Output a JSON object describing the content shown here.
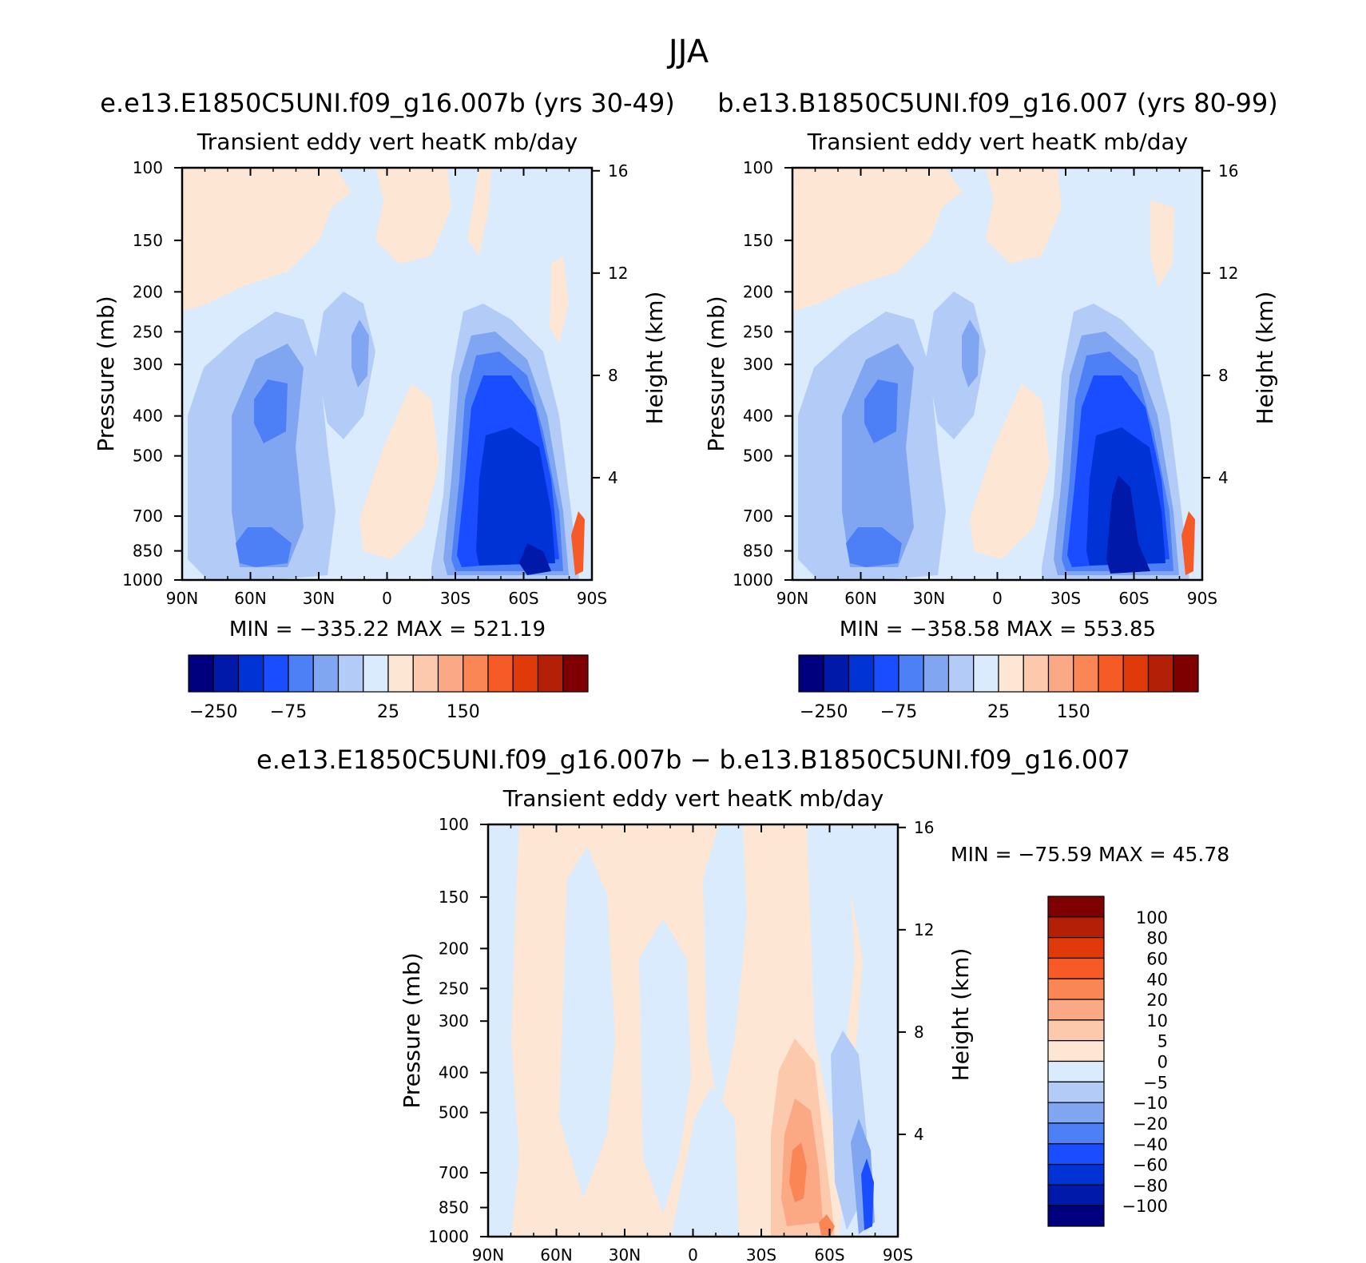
{
  "figure_title": "JJA",
  "panel_left": {
    "case_title": "e.e13.E1850C5UNI.f09_g16.007b (yrs 30-49)",
    "var_title": "Transient eddy vert heatK mb/day",
    "stats": "MIN = −335.22   MAX = 521.19"
  },
  "panel_right": {
    "case_title": "b.e13.B1850C5UNI.f09_g16.007 (yrs 80-99)",
    "var_title": "Transient eddy vert heatK mb/day",
    "stats": "MIN = −358.58   MAX = 553.85"
  },
  "panel_diff": {
    "case_title": "e.e13.E1850C5UNI.f09_g16.007b − b.e13.B1850C5UNI.f09_g16.007",
    "var_title": "Transient eddy vert heatK mb/day",
    "stats": "MIN = −75.59   MAX =   45.78"
  },
  "axes": {
    "ylabel_left": "Pressure (mb)",
    "ylabel_right": "Height (km)"
  },
  "colors": {
    "neg": [
      "#00007f",
      "#0019a8",
      "#0033d6",
      "#1a4dff",
      "#4d7ff7",
      "#80a6f2",
      "#b3ccf7",
      "#d9ebfc"
    ],
    "pos": [
      "#fde6d3",
      "#fcc9ad",
      "#fba884",
      "#fa8555",
      "#f65a26",
      "#e03a0b",
      "#b31f07",
      "#7f0000"
    ]
  },
  "chart_data": [
    {
      "type": "contour",
      "name": "top-left",
      "title": "Transient eddy vert heatK mb/day",
      "xlabel": "",
      "ylabel": "Pressure (mb)",
      "y2label": "Height (km)",
      "x_ticks": [
        "90N",
        "60N",
        "30N",
        "0",
        "30S",
        "60S",
        "90S"
      ],
      "y_ticks": [
        100,
        150,
        200,
        250,
        300,
        400,
        500,
        700,
        850,
        1000
      ],
      "y2_ticks": [
        16,
        12,
        8,
        4
      ],
      "ylim": [
        1000,
        100
      ],
      "min": -335.22,
      "max": 521.19,
      "colorbar_labels": [
        "-250",
        "-75",
        "25",
        "150"
      ]
    },
    {
      "type": "contour",
      "name": "top-right",
      "title": "Transient eddy vert heatK mb/day",
      "ylabel": "Pressure (mb)",
      "y2label": "Height (km)",
      "x_ticks": [
        "90N",
        "60N",
        "30N",
        "0",
        "30S",
        "60S",
        "90S"
      ],
      "y_ticks": [
        100,
        150,
        200,
        250,
        300,
        400,
        500,
        700,
        850,
        1000
      ],
      "y2_ticks": [
        16,
        12,
        8,
        4
      ],
      "ylim": [
        1000,
        100
      ],
      "min": -358.58,
      "max": 553.85,
      "colorbar_labels": [
        "-250",
        "-75",
        "25",
        "150"
      ]
    },
    {
      "type": "contour",
      "name": "difference",
      "title": "Transient eddy vert heatK mb/day",
      "ylabel": "Pressure (mb)",
      "y2label": "Height (km)",
      "x_ticks": [
        "90N",
        "60N",
        "30N",
        "0",
        "30S",
        "60S",
        "90S"
      ],
      "y_ticks": [
        100,
        150,
        200,
        250,
        300,
        400,
        500,
        700,
        850,
        1000
      ],
      "y2_ticks": [
        16,
        12,
        8,
        4
      ],
      "ylim": [
        1000,
        100
      ],
      "min": -75.59,
      "max": 45.78,
      "colorbar_labels": [
        "100",
        "80",
        "60",
        "40",
        "20",
        "10",
        "5",
        "0",
        "−5",
        "−10",
        "−20",
        "−40",
        "−60",
        "−80",
        "−100"
      ]
    }
  ],
  "cb_top_labels": [
    "−250",
    "−75",
    "25",
    "150"
  ]
}
